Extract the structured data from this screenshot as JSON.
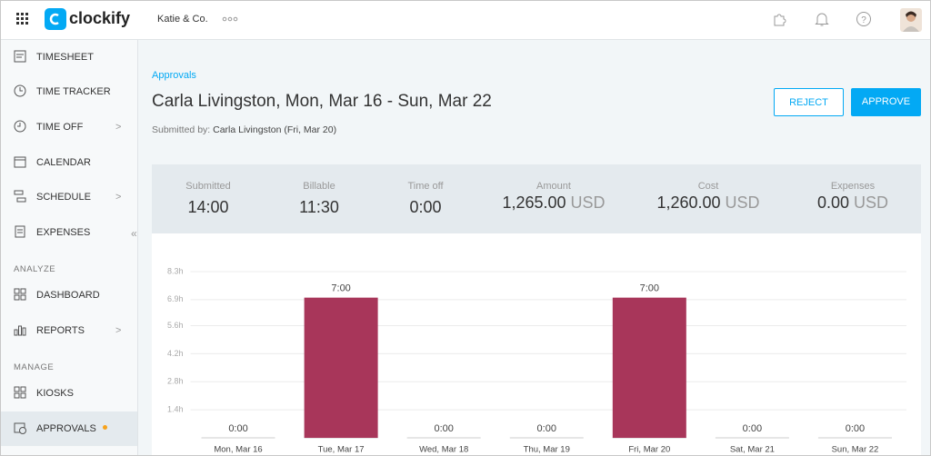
{
  "header": {
    "logo": "clockify",
    "workspace": "Katie & Co."
  },
  "sidebar": {
    "items": [
      "TIMESHEET",
      "TIME TRACKER",
      "TIME OFF",
      "CALENDAR",
      "SCHEDULE",
      "EXPENSES",
      "DASHBOARD",
      "REPORTS",
      "KIOSKS",
      "APPROVALS"
    ],
    "sections": [
      "ANALYZE",
      "MANAGE"
    ]
  },
  "page": {
    "breadcrumb": "Approvals",
    "title": "Carla Livingston, Mon, Mar 16 - Sun, Mar 22",
    "submitted_label": "Submitted by:",
    "submitted_value": "Carla Livingston (Fri, Mar 20)",
    "reject": "REJECT",
    "approve": "APPROVE"
  },
  "summary": [
    {
      "label": "Submitted",
      "value": "14:00"
    },
    {
      "label": "Billable",
      "value": "11:30"
    },
    {
      "label": "Time off",
      "value": "0:00"
    },
    {
      "label": "Amount",
      "value": "1,265.00",
      "unit": "USD"
    },
    {
      "label": "Cost",
      "value": "1,260.00",
      "unit": "USD"
    },
    {
      "label": "Expenses",
      "value": "0.00",
      "unit": "USD"
    }
  ],
  "chart_data": {
    "type": "bar",
    "categories": [
      "Mon, Mar 16",
      "Tue, Mar 17",
      "Wed, Mar 18",
      "Thu, Mar 19",
      "Fri, Mar 20",
      "Sat, Mar 21",
      "Sun, Mar 22"
    ],
    "values": [
      0,
      7,
      0,
      0,
      7,
      0,
      0
    ],
    "value_labels": [
      "0:00",
      "7:00",
      "0:00",
      "0:00",
      "7:00",
      "0:00",
      "0:00"
    ],
    "color": "#a8365a",
    "ylim": [
      0,
      8.3
    ],
    "yticks": [
      {
        "value": 1.4,
        "label": "1.4h"
      },
      {
        "value": 2.8,
        "label": "2.8h"
      },
      {
        "value": 4.2,
        "label": "4.2h"
      },
      {
        "value": 5.6,
        "label": "5.6h"
      },
      {
        "value": 6.9,
        "label": "6.9h"
      },
      {
        "value": 8.3,
        "label": "8.3h"
      }
    ],
    "grid": true
  }
}
